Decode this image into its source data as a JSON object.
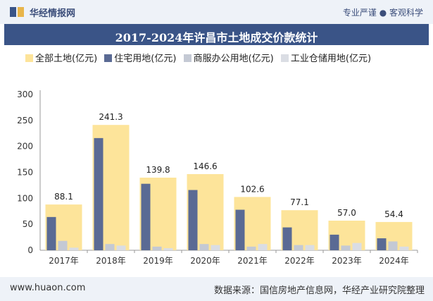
{
  "header": {
    "brand": "华经情报网",
    "slogan": "专业严谨 ● 客观科学"
  },
  "chart_data": {
    "type": "bar",
    "title": "2017-2024年许昌市土地成交价款统计",
    "categories": [
      "2017年",
      "2018年",
      "2019年",
      "2020年",
      "2021年",
      "2022年",
      "2023年",
      "2024年"
    ],
    "series": [
      {
        "name": "全部土地(亿元)",
        "color": "#fde49a",
        "values": [
          88.1,
          241.3,
          139.8,
          146.6,
          102.6,
          77.1,
          57.0,
          54.4
        ],
        "labels": [
          "88.1",
          "241.3",
          "139.8",
          "146.6",
          "102.6",
          "77.1",
          "57.0",
          "54.4"
        ]
      },
      {
        "name": "住宅用地(亿元)",
        "color": "#5a6a94",
        "values": [
          64,
          216,
          128,
          116,
          78,
          44,
          30,
          23
        ]
      },
      {
        "name": "商服办公用地(亿元)",
        "color": "#c4c9d4",
        "values": [
          18,
          12,
          7,
          12,
          7,
          10,
          9,
          17
        ]
      },
      {
        "name": "工业仓储用地(亿元)",
        "color": "#dadde4",
        "values": [
          5,
          9,
          4,
          10,
          12,
          10,
          14,
          7
        ]
      }
    ],
    "yticks": [
      "0",
      "50",
      "100",
      "150",
      "200",
      "250",
      "300"
    ],
    "ylim": [
      0,
      300
    ]
  },
  "footer": {
    "site": "www.huaon.com",
    "source": "数据来源：国信房地产信息网，华经产业研究院整理"
  }
}
